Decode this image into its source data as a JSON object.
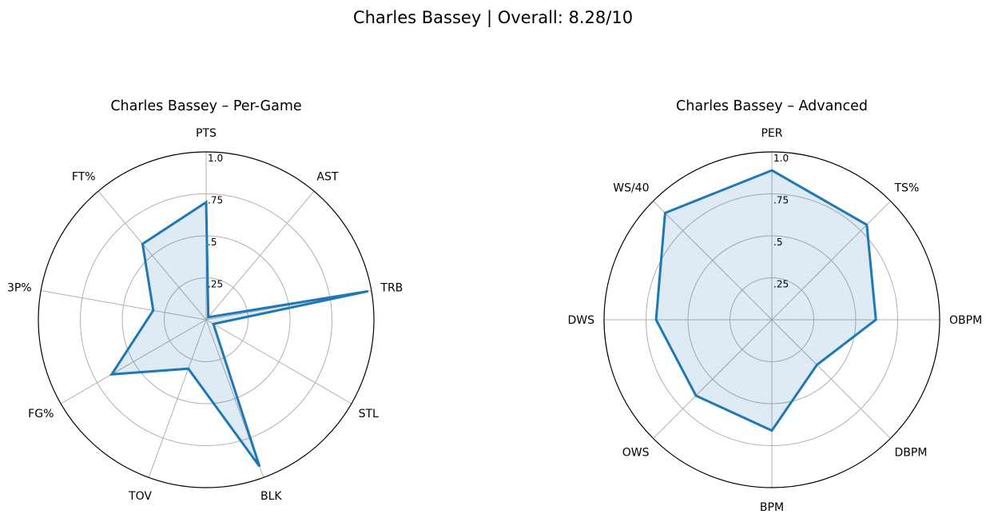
{
  "figure": {
    "suptitle": "Charles Bassey | Overall: 8.28/10"
  },
  "chart_data": [
    {
      "type": "radar",
      "title": "Charles Bassey – Per-Game",
      "categories": [
        "PTS",
        "AST",
        "TRB",
        "STL",
        "BLK",
        "TOV",
        "FG%",
        "3P%",
        "FT%"
      ],
      "values": [
        0.7,
        0.02,
        0.98,
        0.05,
        0.93,
        0.31,
        0.65,
        0.32,
        0.59
      ],
      "rlim": [
        0,
        1
      ],
      "rticks": [
        0.25,
        0.5,
        0.75,
        1.0
      ],
      "rtick_labels": [
        ".25",
        ".5",
        ".75",
        "1.0"
      ],
      "grid": true,
      "line_color": "#1f77b4",
      "fill_color": "#1f77b4"
    },
    {
      "type": "radar",
      "title": "Charles Bassey – Advanced",
      "categories": [
        "PER",
        "TS%",
        "OBPM",
        "DBPM",
        "BPM",
        "OWS",
        "DWS",
        "WS/40"
      ],
      "values": [
        0.89,
        0.8,
        0.62,
        0.38,
        0.66,
        0.64,
        0.69,
        0.9
      ],
      "rlim": [
        0,
        1
      ],
      "rticks": [
        0.25,
        0.5,
        0.75,
        1.0
      ],
      "rtick_labels": [
        ".25",
        ".5",
        ".75",
        "1.0"
      ],
      "grid": true,
      "line_color": "#1f77b4",
      "fill_color": "#1f77b4"
    }
  ]
}
